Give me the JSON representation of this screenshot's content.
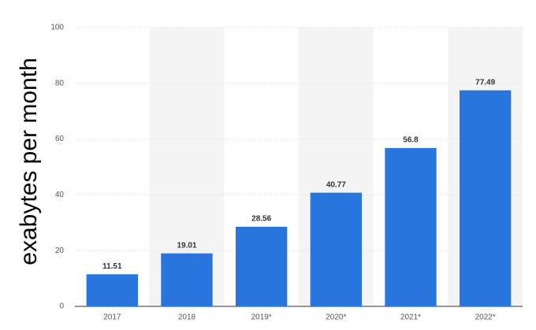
{
  "chart_data": {
    "type": "bar",
    "y_label": "exabytes per month",
    "categories": [
      "2017",
      "2018",
      "2019*",
      "2020*",
      "2021*",
      "2022*"
    ],
    "values": [
      11.51,
      19.01,
      28.56,
      40.77,
      56.8,
      77.49
    ],
    "color": "#2876dd",
    "ylim": [
      0,
      100
    ],
    "yticks": [
      0,
      20,
      40,
      60,
      80,
      100
    ],
    "grid": true
  }
}
